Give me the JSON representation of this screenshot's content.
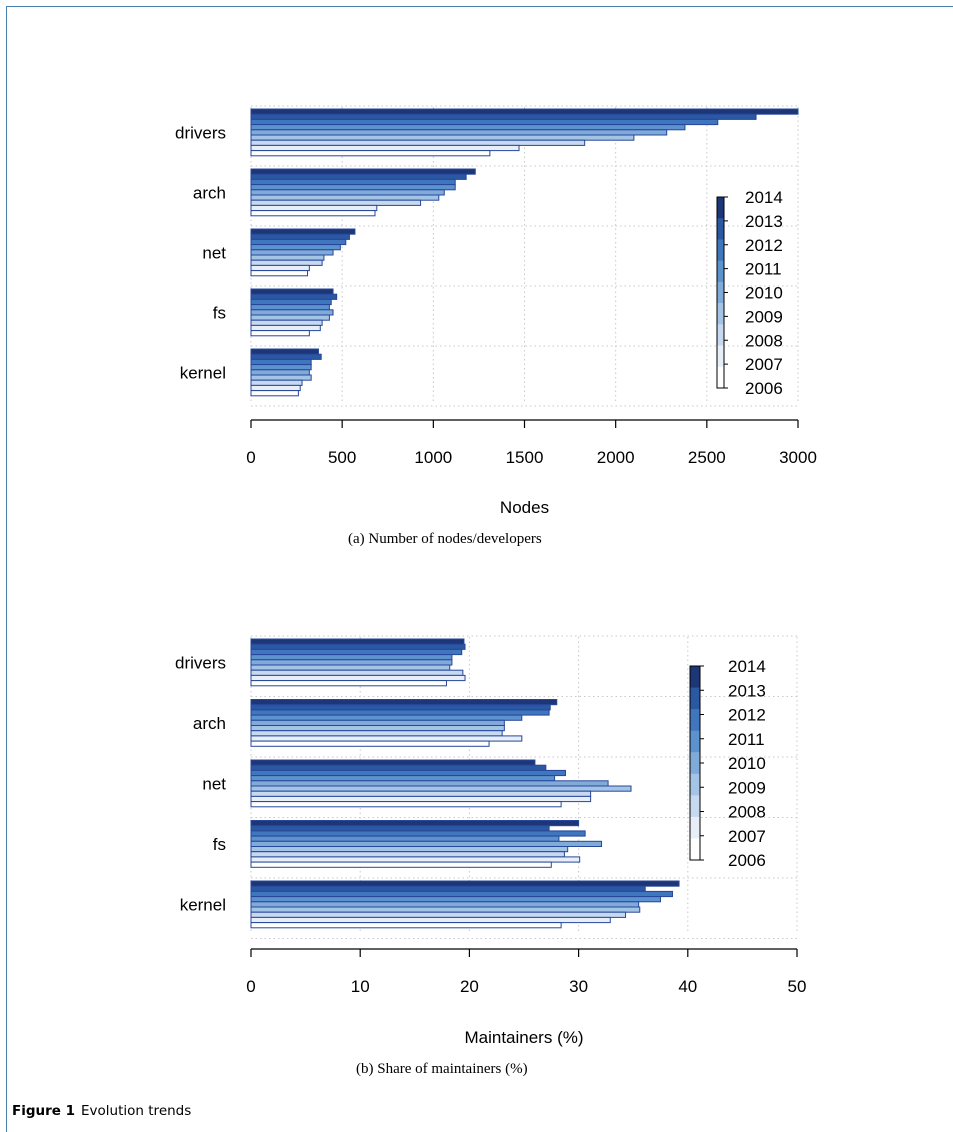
{
  "colors": {
    "years": [
      "#ffffff",
      "#e7eef8",
      "#c7d9ef",
      "#a4c4e6",
      "#80abd9",
      "#5c92cd",
      "#3f76bd",
      "#2b58a3",
      "#1c3677"
    ],
    "bar_stroke": "#27479a",
    "grid": "#c8c8c8"
  },
  "chart_data": [
    {
      "type": "bar",
      "orientation": "horizontal",
      "caption": "(a) Number of nodes/developers",
      "xlabel": "Nodes",
      "xlim": [
        0,
        3000
      ],
      "xticks": [
        0,
        500,
        1000,
        1500,
        2000,
        2500,
        3000
      ],
      "grid": true,
      "legend_position": "right",
      "categories": [
        "drivers",
        "arch",
        "net",
        "fs",
        "kernel"
      ],
      "series": [
        {
          "name": "2014",
          "values": [
            3000,
            1230,
            570,
            450,
            370
          ]
        },
        {
          "name": "2013",
          "values": [
            2770,
            1180,
            540,
            470,
            385
          ]
        },
        {
          "name": "2012",
          "values": [
            2560,
            1120,
            520,
            440,
            330
          ]
        },
        {
          "name": "2011",
          "values": [
            2380,
            1120,
            490,
            430,
            330
          ]
        },
        {
          "name": "2010",
          "values": [
            2280,
            1060,
            450,
            450,
            320
          ]
        },
        {
          "name": "2009",
          "values": [
            2100,
            1030,
            400,
            430,
            330
          ]
        },
        {
          "name": "2008",
          "values": [
            1830,
            930,
            390,
            390,
            280
          ]
        },
        {
          "name": "2007",
          "values": [
            1470,
            690,
            320,
            380,
            270
          ]
        },
        {
          "name": "2006",
          "values": [
            1310,
            680,
            310,
            320,
            260
          ]
        }
      ]
    },
    {
      "type": "bar",
      "orientation": "horizontal",
      "caption": "(b) Share of maintainers (%)",
      "xlabel": "Maintainers (%)",
      "xlim": [
        0,
        50
      ],
      "xticks": [
        0,
        10,
        20,
        30,
        40,
        50
      ],
      "grid": true,
      "legend_position": "right",
      "categories": [
        "drivers",
        "arch",
        "net",
        "fs",
        "kernel"
      ],
      "series": [
        {
          "name": "2014",
          "values": [
            19.5,
            28.0,
            26.0,
            30.0,
            39.2
          ]
        },
        {
          "name": "2013",
          "values": [
            19.6,
            27.4,
            27.0,
            27.3,
            36.1
          ]
        },
        {
          "name": "2012",
          "values": [
            19.3,
            27.3,
            28.8,
            30.6,
            38.6
          ]
        },
        {
          "name": "2011",
          "values": [
            18.4,
            24.8,
            27.8,
            28.2,
            37.5
          ]
        },
        {
          "name": "2010",
          "values": [
            18.4,
            23.2,
            32.7,
            32.1,
            35.5
          ]
        },
        {
          "name": "2009",
          "values": [
            18.2,
            23.2,
            34.8,
            29.0,
            35.6
          ]
        },
        {
          "name": "2008",
          "values": [
            19.4,
            23.0,
            31.1,
            28.7,
            34.3
          ]
        },
        {
          "name": "2007",
          "values": [
            19.6,
            24.8,
            31.1,
            30.1,
            32.9
          ]
        },
        {
          "name": "2006",
          "values": [
            17.9,
            21.8,
            28.4,
            27.5,
            28.4
          ]
        }
      ]
    }
  ],
  "figure_caption": {
    "label": "Figure 1",
    "text": "Evolution trends"
  }
}
